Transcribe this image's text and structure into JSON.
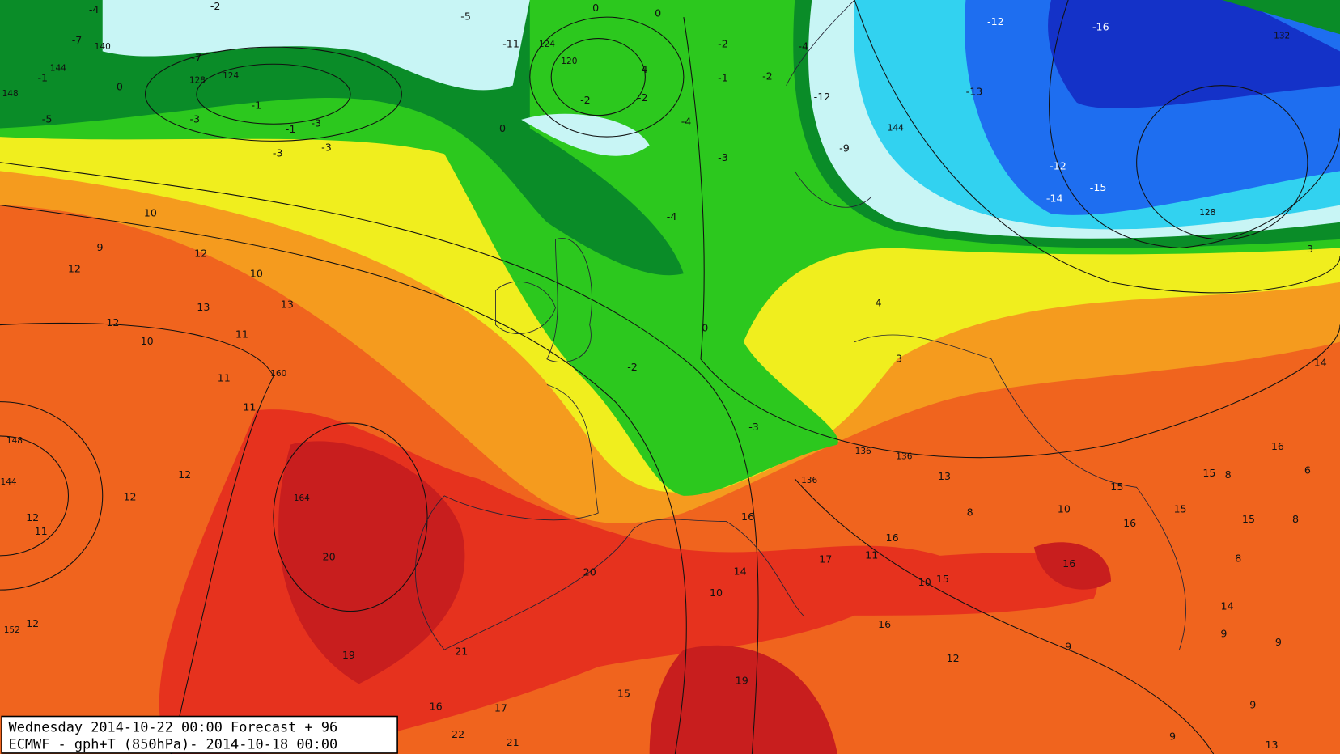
{
  "caption": {
    "line1": "Wednesday 2014-10-22 00:00 Forecast + 96",
    "line2": "ECMWF - gph+T (850hPa)- 2014-10-18 00:00"
  },
  "temperature_labels": [
    -4,
    -2,
    -5,
    -7,
    -7,
    -1,
    -5,
    0,
    -3,
    -1,
    -1,
    -3,
    -3,
    -3,
    0,
    -11,
    -2,
    -4,
    -2,
    -4,
    -4,
    -3,
    -2,
    -1,
    -2,
    -4,
    0,
    0,
    -12,
    -16,
    -13,
    -12,
    -9,
    -12,
    -15,
    -14,
    3,
    4,
    3,
    0,
    -2,
    -3,
    10,
    9,
    12,
    12,
    10,
    13,
    13,
    12,
    10,
    11,
    11,
    11,
    12,
    12,
    12,
    11,
    12,
    20,
    19,
    21,
    15,
    19,
    16,
    17,
    22,
    21,
    20,
    16,
    14,
    10,
    17,
    11,
    10,
    15,
    16,
    16,
    12,
    13,
    8,
    10,
    15,
    16,
    15,
    15,
    8,
    16,
    15,
    8,
    6,
    14,
    16,
    8,
    14,
    9,
    9,
    9,
    9,
    13,
    9
  ],
  "height_labels": [
    144,
    140,
    148,
    128,
    124,
    124,
    120,
    160,
    164,
    148,
    144,
    152,
    144,
    128,
    132,
    136,
    136,
    136
  ]
}
